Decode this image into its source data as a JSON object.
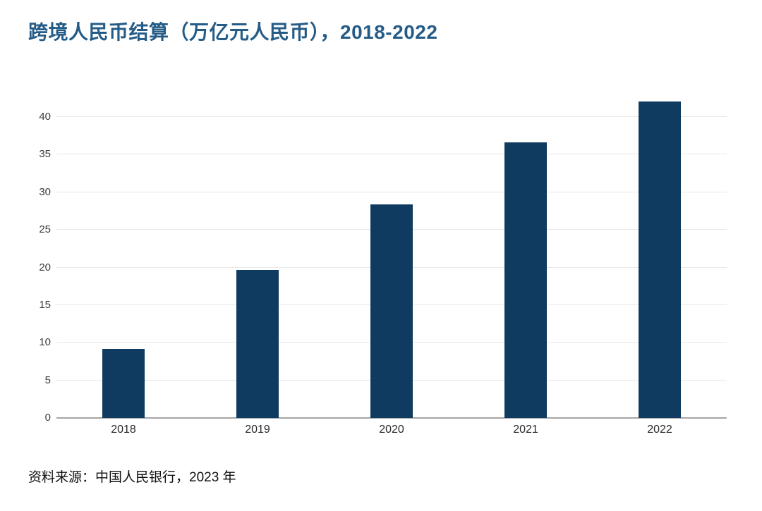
{
  "header": {
    "title": "跨境人民币结算（万亿元人民币），2018-2022"
  },
  "footer": {
    "source": "资料来源：中国人民银行，2023 年"
  },
  "colors": {
    "bar": "#0f3b60",
    "title_text": "#255c87",
    "gridline": "#e8e8e8",
    "axis_line": "#a6a6a6",
    "tick_text": "#3d3d3d",
    "label_text": "#2b2b2b",
    "source_text": "#111111",
    "background": "#ffffff"
  },
  "chart_data": {
    "type": "bar",
    "title": "跨境人民币结算（万亿元人民币），2018-2022",
    "unit": "万亿元人民币",
    "categories": [
      "2018",
      "2019",
      "2020",
      "2021",
      "2022"
    ],
    "values": [
      9.2,
      19.7,
      28.4,
      36.6,
      42.1
    ],
    "xlabel": "",
    "ylabel": "",
    "ylim": [
      0,
      40
    ],
    "yticks": [
      0,
      5,
      10,
      15,
      20,
      25,
      30,
      35,
      40
    ],
    "grid": true,
    "legend": false,
    "source": "资料来源：中国人民银行，2023 年"
  }
}
